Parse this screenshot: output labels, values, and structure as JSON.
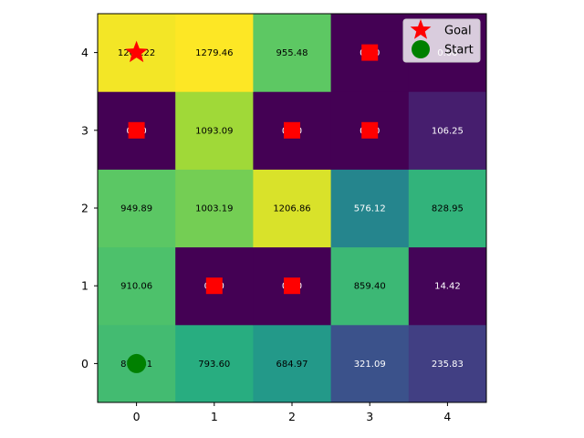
{
  "chart_data": {
    "type": "heatmap",
    "title": "",
    "xlabel": "",
    "ylabel": "",
    "x": [
      0,
      1,
      2,
      3,
      4
    ],
    "y": [
      0,
      1,
      2,
      3,
      4
    ],
    "xlim": [
      -0.5,
      4.5
    ],
    "ylim": [
      -0.5,
      4.5
    ],
    "grid": false,
    "colormap": "viridis",
    "value_range": [
      0,
      1279.46
    ],
    "values": [
      [
        879.41,
        793.6,
        684.97,
        321.09,
        235.83
      ],
      [
        910.06,
        0.0,
        0.0,
        859.4,
        14.42
      ],
      [
        949.89,
        1003.19,
        1206.86,
        576.12,
        828.95
      ],
      [
        0.0,
        1093.09,
        0.0,
        0.0,
        106.25
      ],
      [
        1260.22,
        1279.46,
        955.48,
        0.0,
        0.0
      ]
    ],
    "obstacles": [
      [
        1,
        1
      ],
      [
        2,
        1
      ],
      [
        0,
        3
      ],
      [
        2,
        3
      ],
      [
        3,
        3
      ],
      [
        3,
        4
      ]
    ],
    "obstacle_color": "#ff0000",
    "start": {
      "x": 0,
      "y": 0,
      "marker": "circle",
      "color": "#008000"
    },
    "goal": {
      "x": 0,
      "y": 4,
      "marker": "star",
      "color": "#ff0000"
    },
    "legend": {
      "placement": "top-right",
      "entries": [
        {
          "label": "Goal",
          "marker": "star",
          "color": "#ff0000"
        },
        {
          "label": "Start",
          "marker": "circle",
          "color": "#008000"
        }
      ]
    }
  }
}
